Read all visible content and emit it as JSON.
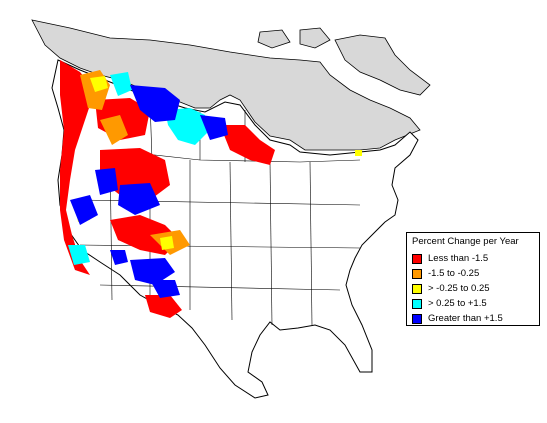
{
  "colors": {
    "land": "#ffffff",
    "outside_range": "#d8d8d8",
    "outline": "#000000"
  },
  "legend": {
    "title": "Percent Change per Year",
    "items": [
      {
        "label": "Less than -1.5",
        "color": "#ff0000"
      },
      {
        "label": "-1.5 to -0.25",
        "color": "#ff9900"
      },
      {
        "label": "> -0.25 to 0.25",
        "color": "#ffff00"
      },
      {
        "label": "> 0.25 to +1.5",
        "color": "#00ffff"
      },
      {
        "label": "Greater than +1.5",
        "color": "#0000ff"
      }
    ]
  }
}
